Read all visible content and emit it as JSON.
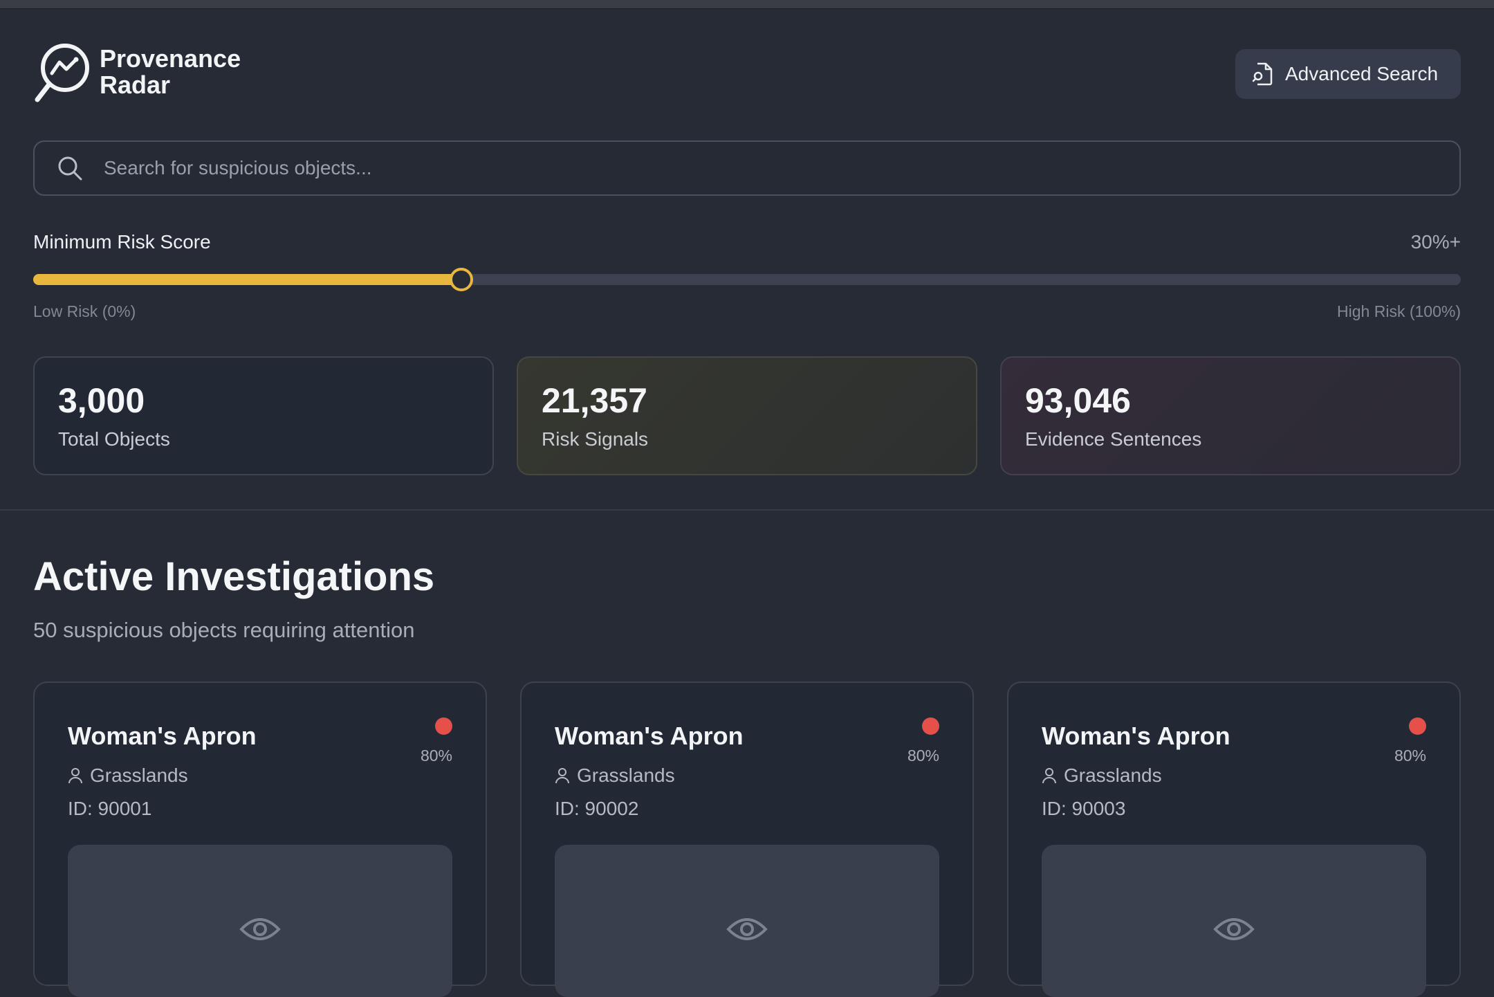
{
  "app": {
    "title_line1": "Provenance",
    "title_line2": "Radar",
    "logo_icon": "radar-magnifier-icon"
  },
  "header": {
    "advanced_search_label": "Advanced Search",
    "advanced_search_icon": "document-search-icon"
  },
  "search": {
    "placeholder": "Search for suspicious objects...",
    "value": ""
  },
  "risk_filter": {
    "label": "Minimum Risk Score",
    "value_display": "30%+",
    "value_fraction": 0.3,
    "min_label": "Low Risk (0%)",
    "max_label": "High Risk (100%)",
    "accent_color": "#e8b83e"
  },
  "stats": [
    {
      "value": "3,000",
      "label": "Total Objects"
    },
    {
      "value": "21,357",
      "label": "Risk Signals"
    },
    {
      "value": "93,046",
      "label": "Evidence Sentences"
    }
  ],
  "investigations": {
    "title": "Active Investigations",
    "subtitle": "50 suspicious objects requiring attention",
    "cards": [
      {
        "title": "Woman's Apron",
        "location": "Grasslands",
        "id": "ID: 90001",
        "risk": "80%",
        "status_color": "#e5504a"
      },
      {
        "title": "Woman's Apron",
        "location": "Grasslands",
        "id": "ID: 90002",
        "risk": "80%",
        "status_color": "#e5504a"
      },
      {
        "title": "Woman's Apron",
        "location": "Grasslands",
        "id": "ID: 90003",
        "risk": "80%",
        "status_color": "#e5504a"
      }
    ]
  }
}
